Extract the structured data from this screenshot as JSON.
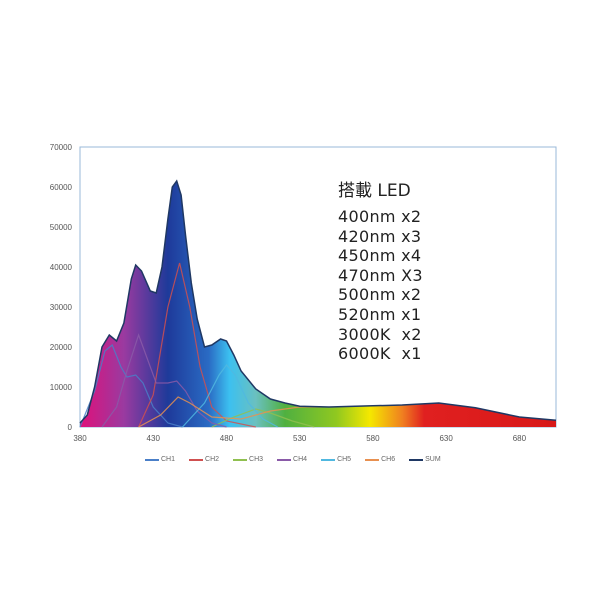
{
  "chart_data": {
    "type": "area",
    "title": "",
    "xlabel": "",
    "ylabel": "",
    "xlim": [
      380,
      705
    ],
    "ylim": [
      0,
      70000
    ],
    "xticks": [
      380,
      430,
      480,
      530,
      580,
      630,
      680
    ],
    "yticks": [
      0,
      10000,
      20000,
      30000,
      40000,
      50000,
      60000,
      70000
    ],
    "legend_position": "bottom",
    "annotation": {
      "title": "搭載 LED",
      "lines": [
        "400nm x2",
        "420nm x3",
        "450nm x4",
        "470nm X3",
        "500nm x2",
        "520nm x1",
        "3000K  x2",
        "6000K  x1"
      ]
    },
    "series": [
      {
        "name": "CH1",
        "color": "#4a7fc8",
        "points": [
          [
            380,
            0
          ],
          [
            390,
            9000
          ],
          [
            397,
            19000
          ],
          [
            402,
            20500
          ],
          [
            408,
            15000
          ],
          [
            412,
            12500
          ],
          [
            418,
            13000
          ],
          [
            423,
            11000
          ],
          [
            430,
            5000
          ],
          [
            440,
            1000
          ],
          [
            450,
            0
          ]
        ]
      },
      {
        "name": "CH2",
        "color": "#d05050",
        "points": [
          [
            420,
            0
          ],
          [
            430,
            8000
          ],
          [
            440,
            30000
          ],
          [
            448,
            41000
          ],
          [
            455,
            30000
          ],
          [
            462,
            15000
          ],
          [
            470,
            5000
          ],
          [
            480,
            1500
          ],
          [
            500,
            0
          ]
        ]
      },
      {
        "name": "CH3",
        "color": "#90c050",
        "points": [
          [
            470,
            0
          ],
          [
            485,
            2500
          ],
          [
            500,
            4500
          ],
          [
            510,
            3500
          ],
          [
            525,
            1500
          ],
          [
            540,
            0
          ]
        ]
      },
      {
        "name": "CH4",
        "color": "#8a5aa8",
        "points": [
          [
            395,
            0
          ],
          [
            405,
            5000
          ],
          [
            412,
            14000
          ],
          [
            420,
            23000
          ],
          [
            426,
            17000
          ],
          [
            432,
            11000
          ],
          [
            440,
            11000
          ],
          [
            446,
            11500
          ],
          [
            452,
            9000
          ],
          [
            460,
            4000
          ],
          [
            470,
            1000
          ],
          [
            480,
            0
          ]
        ]
      },
      {
        "name": "CH5",
        "color": "#50b8e0",
        "points": [
          [
            450,
            0
          ],
          [
            465,
            6000
          ],
          [
            475,
            13000
          ],
          [
            480,
            15500
          ],
          [
            486,
            13000
          ],
          [
            495,
            6000
          ],
          [
            505,
            2000
          ],
          [
            515,
            0
          ]
        ]
      },
      {
        "name": "CH6",
        "color": "#e89050",
        "points": [
          [
            420,
            0
          ],
          [
            435,
            3000
          ],
          [
            447,
            7500
          ],
          [
            455,
            6000
          ],
          [
            470,
            2500
          ],
          [
            490,
            2000
          ],
          [
            510,
            4000
          ],
          [
            530,
            5000
          ],
          [
            545,
            5000
          ]
        ]
      },
      {
        "name": "SUM",
        "color": "#1f3864",
        "points": [
          [
            380,
            1000
          ],
          [
            385,
            3000
          ],
          [
            390,
            10000
          ],
          [
            395,
            20000
          ],
          [
            400,
            23000
          ],
          [
            405,
            21500
          ],
          [
            410,
            26000
          ],
          [
            415,
            37000
          ],
          [
            418,
            40500
          ],
          [
            422,
            39000
          ],
          [
            428,
            34000
          ],
          [
            432,
            33500
          ],
          [
            436,
            40000
          ],
          [
            440,
            52000
          ],
          [
            443,
            60000
          ],
          [
            446,
            61500
          ],
          [
            449,
            58000
          ],
          [
            452,
            48000
          ],
          [
            456,
            36000
          ],
          [
            460,
            27000
          ],
          [
            465,
            20000
          ],
          [
            470,
            20500
          ],
          [
            476,
            22000
          ],
          [
            480,
            21500
          ],
          [
            485,
            18000
          ],
          [
            490,
            14000
          ],
          [
            500,
            9500
          ],
          [
            510,
            7000
          ],
          [
            520,
            6000
          ],
          [
            530,
            5200
          ],
          [
            550,
            5000
          ],
          [
            580,
            5300
          ],
          [
            600,
            5500
          ],
          [
            625,
            6000
          ],
          [
            650,
            4800
          ],
          [
            680,
            2500
          ],
          [
            705,
            1700
          ]
        ]
      }
    ],
    "fill_gradient": [
      [
        380,
        "#e0107a"
      ],
      [
        410,
        "#9a3aa0"
      ],
      [
        440,
        "#1e3a9a"
      ],
      [
        468,
        "#2a6bc4"
      ],
      [
        482,
        "#3cc0f0"
      ],
      [
        500,
        "#6ac0c0"
      ],
      [
        520,
        "#50b040"
      ],
      [
        555,
        "#90c820"
      ],
      [
        578,
        "#f5e800"
      ],
      [
        600,
        "#f08020"
      ],
      [
        615,
        "#e02020"
      ],
      [
        705,
        "#d81818"
      ]
    ]
  }
}
